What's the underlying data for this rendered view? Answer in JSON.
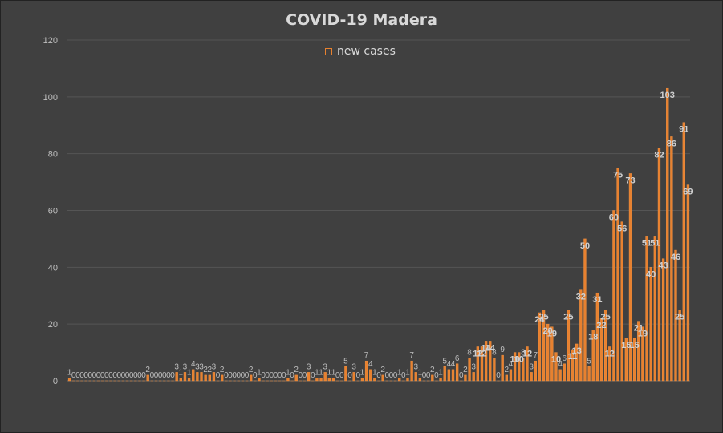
{
  "chart_data": {
    "type": "bar",
    "title": "COVID-19 Madera",
    "xlabel": "",
    "ylabel": "",
    "ylim": [
      0,
      120
    ],
    "yticks": [
      "0",
      "20",
      "40",
      "60",
      "80",
      "100",
      "120"
    ],
    "grid": true,
    "legend_position": "top-center",
    "series": [
      {
        "name": "new cases",
        "color": "#e8812f",
        "values": [
          1,
          0,
          0,
          0,
          0,
          0,
          0,
          0,
          0,
          0,
          0,
          0,
          0,
          0,
          0,
          0,
          0,
          0,
          0,
          2,
          0,
          0,
          0,
          0,
          0,
          0,
          3,
          1,
          3,
          1,
          4,
          3,
          3,
          2,
          2,
          3,
          0,
          2,
          0,
          0,
          0,
          0,
          0,
          0,
          2,
          0,
          1,
          0,
          0,
          0,
          0,
          0,
          0,
          1,
          0,
          2,
          0,
          0,
          3,
          0,
          1,
          1,
          3,
          1,
          1,
          0,
          0,
          5,
          0,
          3,
          0,
          1,
          7,
          4,
          1,
          0,
          2,
          0,
          0,
          0,
          1,
          0,
          1,
          7,
          3,
          1,
          0,
          0,
          2,
          0,
          1,
          5,
          4,
          4,
          6,
          0,
          2,
          8,
          3,
          12,
          12,
          14,
          14,
          8,
          0,
          9,
          2,
          4,
          10,
          10,
          8,
          12,
          3,
          7,
          24,
          25,
          20,
          19,
          10,
          4,
          6,
          25,
          11,
          13,
          32,
          50,
          5,
          18,
          31,
          22,
          25,
          12,
          60,
          75,
          56,
          15,
          73,
          15,
          21,
          19,
          51,
          40,
          51,
          82,
          43,
          103,
          86,
          46,
          25,
          91,
          69
        ]
      }
    ],
    "data_labels": [
      "1",
      "0",
      "0",
      "0",
      "0",
      "0",
      "0",
      "0",
      "0",
      "0",
      "0",
      "0",
      "0",
      "0",
      "0",
      "0",
      "0",
      "0",
      "0",
      "2",
      "0",
      "0",
      "0",
      "0",
      "0",
      "0",
      "3",
      "1",
      "3",
      "1",
      "4",
      "3",
      "3",
      "2",
      "2",
      "3",
      "0",
      "2",
      "0",
      "0",
      "0",
      "0",
      "0",
      "0",
      "2",
      "0",
      "1",
      "0",
      "0",
      "0",
      "0",
      "0",
      "0",
      "1",
      "0",
      "2",
      "0",
      "0",
      "3",
      "0",
      "1",
      "1",
      "3",
      "1",
      "1",
      "0",
      "0",
      "5",
      "0",
      "3",
      "0",
      "1",
      "7",
      "4",
      "1",
      "0",
      "2",
      "0",
      "0",
      "0",
      "1",
      "0",
      "1",
      "7",
      "3",
      "1",
      "0",
      "0",
      "2",
      "0",
      "1",
      "5",
      "4",
      "4",
      "6",
      "0",
      "2",
      "8",
      "3",
      "12",
      "12",
      "14",
      "14",
      "8",
      "0",
      "9",
      "2",
      "4",
      "10",
      "10",
      "8",
      "12",
      "3",
      "7",
      "24",
      "25",
      "20",
      "19",
      "10",
      "4",
      "6",
      "25",
      "11",
      "13",
      "32",
      "50",
      "5",
      "18",
      "31",
      "22",
      "25",
      "12",
      "60",
      "75",
      "56",
      "15",
      "73",
      "15",
      "21",
      "19",
      "51",
      "40",
      "51",
      "82",
      "43",
      "103",
      "86",
      "46",
      "25",
      "91",
      "69"
    ]
  }
}
